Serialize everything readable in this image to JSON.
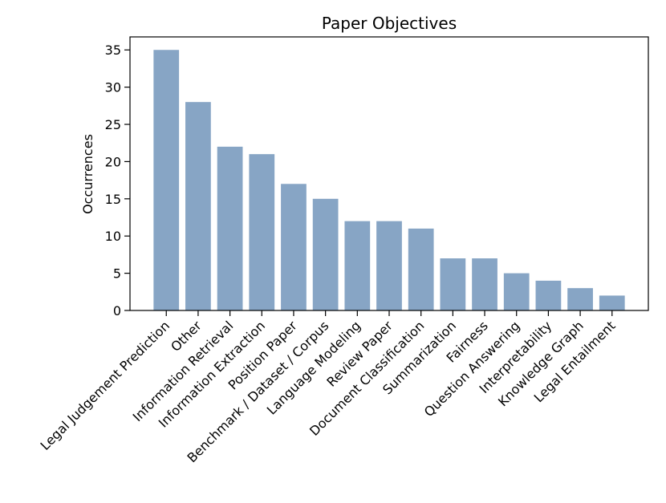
{
  "chart_data": {
    "type": "bar",
    "title": "Paper Objectives",
    "xlabel": "",
    "ylabel": "Occurrences",
    "ylim": [
      0,
      36.75
    ],
    "yticks": [
      0,
      5,
      10,
      15,
      20,
      25,
      30,
      35
    ],
    "grid": false,
    "bar_color": "#87a5c5",
    "categories": [
      "Legal Judgement Prediction",
      "Other",
      "Information Retrieval",
      "Information Extraction",
      "Position Paper",
      "Benchmark / Dataset / Corpus",
      "Language Modeling",
      "Review Paper",
      "Document Classification",
      "Summarization",
      "Fairness",
      "Question Answering",
      "Interpretability",
      "Knowledge Graph",
      "Legal Entailment"
    ],
    "values": [
      35,
      28,
      22,
      21,
      17,
      15,
      12,
      12,
      11,
      7,
      7,
      5,
      4,
      3,
      2
    ]
  }
}
